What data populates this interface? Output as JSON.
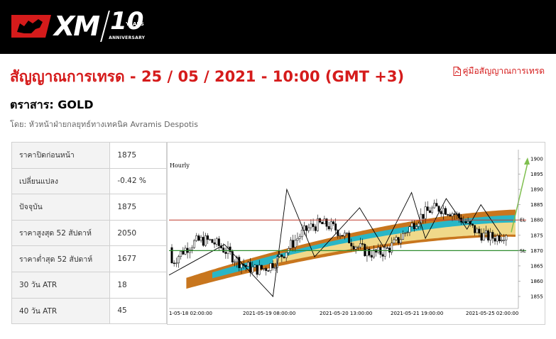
{
  "header": {
    "brand": "XM",
    "anniversary_number": "10",
    "anniversary_years": "YEARS",
    "anniversary_word": "ANNIVERSARY",
    "brand_color": "#d51b1b"
  },
  "title": "สัญญาณการเทรด - 25 / 05 / 2021 - 10:00 (GMT +3)",
  "guide_link": {
    "label": "คู่มือสัญญาณการเทรด",
    "icon": "pdf-icon"
  },
  "instrument": "ตราสาร: GOLD",
  "author": "โดย: หัวหน้าฝ่ายกลยุทธ์ทางเทคนิค Avramis Despotis",
  "stats": [
    {
      "label": "ราคาปิดก่อนหน้า",
      "value": "1875"
    },
    {
      "label": "เปลี่ยนแปลง",
      "value": "-0.42 %"
    },
    {
      "label": "ปัจจุบัน",
      "value": "1875"
    },
    {
      "label": "ราคาสูงสุด 52 สัปดาห์",
      "value": "2050"
    },
    {
      "label": "ราคาต่ำสุด 52 สัปดาห์",
      "value": "1677"
    },
    {
      "label": "30 วัน ATR",
      "value": "18"
    },
    {
      "label": "40 วัน ATR",
      "value": "45"
    }
  ],
  "chart_data": {
    "type": "line",
    "title": "Hourly",
    "x_tick_labels": [
      "1-05-18 02:00:00",
      "2021-05-19 08:00:00",
      "2021-05-20 13:00:00",
      "2021-05-21 19:00:00",
      "2021-05-25 02:00:00"
    ],
    "y_ticks": [
      1855,
      1860,
      1865,
      1870,
      1875,
      1880,
      1885,
      1890,
      1895,
      1900
    ],
    "ylim": [
      1852,
      1903
    ],
    "el_label": "EL",
    "sl_label": "SL",
    "entry_level": 1880,
    "stop_level": 1870,
    "target_level": 1900,
    "colors": {
      "entry": "#c0392b",
      "stop": "#2e8b2e",
      "target": "#7fbf4f",
      "band_outer": "#c8761e",
      "band_mid": "#29b6c6",
      "band_inner": "#f0d98a"
    }
  }
}
